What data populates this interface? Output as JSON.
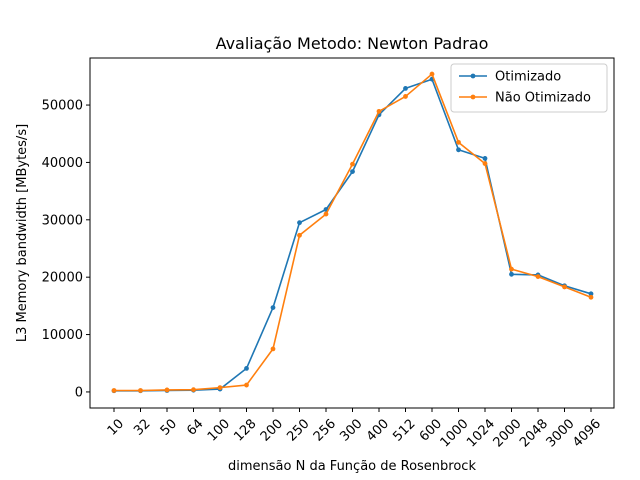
{
  "chart_data": {
    "type": "line",
    "title": "Avaliação Metodo:  Newton Padrao",
    "xlabel": "dimensão N da Função de Rosenbrock",
    "ylabel": "L3 Memory bandwidth [MBytes/s]",
    "categories": [
      "10",
      "32",
      "50",
      "64",
      "100",
      "128",
      "200",
      "250",
      "256",
      "300",
      "400",
      "512",
      "600",
      "1000",
      "1024",
      "2000",
      "2048",
      "3000",
      "4096"
    ],
    "ylim": [
      -2800,
      58200
    ],
    "yticks": [
      0,
      10000,
      20000,
      30000,
      40000,
      50000
    ],
    "grid": false,
    "legend_position": "top-right",
    "series": [
      {
        "name": "Otimizado",
        "color": "#1f77b4",
        "values": [
          200,
          200,
          250,
          300,
          500,
          4100,
          14700,
          29500,
          31800,
          38400,
          48300,
          52900,
          54500,
          42200,
          40700,
          20500,
          20400,
          18500,
          17100
        ]
      },
      {
        "name": " Não Otimizado",
        "color": "#ff7f0e",
        "values": [
          250,
          250,
          350,
          400,
          750,
          1200,
          7500,
          27300,
          31000,
          39700,
          48900,
          51500,
          55400,
          43500,
          39800,
          21400,
          20100,
          18300,
          16500
        ]
      }
    ]
  }
}
